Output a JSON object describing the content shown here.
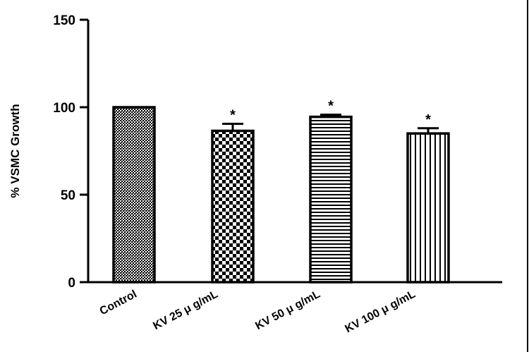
{
  "chart_data": {
    "type": "bar",
    "title": "",
    "ylabel": "% VSMC Growth",
    "xlabel": "",
    "ylim": [
      0,
      150
    ],
    "yticks": [
      "0",
      "50",
      "100",
      "150"
    ],
    "categories": [
      "Control",
      "KV 25 μ g/mL",
      "KV 50 μ g/mL",
      "KV 100 μ g/mL"
    ],
    "values": [
      100,
      86.5,
      94.5,
      85
    ],
    "errors": [
      0,
      4,
      1.2,
      3
    ],
    "significance": [
      "",
      "*",
      "*",
      "*"
    ],
    "patterns": [
      "crosshatch",
      "checker",
      "horizontal",
      "vertical"
    ],
    "grid": false,
    "legend": "none",
    "colors": {
      "bar_fill": "#ffffff",
      "pattern": "#000000",
      "axis": "#000000"
    }
  }
}
